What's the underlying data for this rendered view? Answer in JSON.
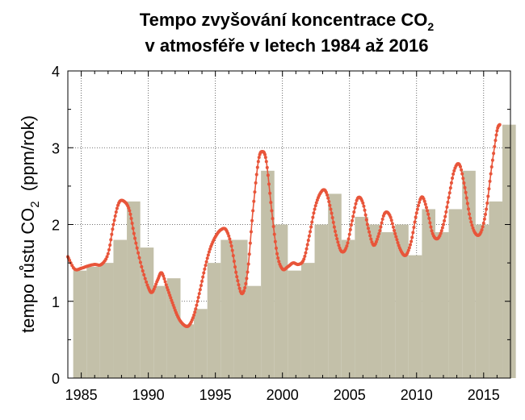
{
  "chart_data": {
    "type": "bar",
    "title": {
      "line1": {
        "text": "Tempo zvyšování koncentrace CO",
        "sub": "2"
      },
      "line2": "v atmosféře v letech 1984 až 2016"
    },
    "ylabel": {
      "before": "tempo růstu CO",
      "sub": "2",
      "after": "  (ppm/rok)"
    },
    "xlabel": "",
    "xlim": [
      1984,
      2017
    ],
    "ylim": [
      0,
      4
    ],
    "xticks": [
      1985,
      1990,
      1995,
      2000,
      2005,
      2010,
      2015
    ],
    "yticks": [
      0,
      1,
      2,
      3,
      4
    ],
    "grid": true,
    "colors": {
      "bars": "#c3c0a9",
      "line": "#e8553a"
    },
    "bars": {
      "years": [
        1984,
        1985,
        1986,
        1987,
        1988,
        1989,
        1990,
        1991,
        1992,
        1993,
        1994,
        1995,
        1996,
        1997,
        1998,
        1999,
        2000,
        2001,
        2002,
        2003,
        2004,
        2005,
        2006,
        2007,
        2008,
        2009,
        2010,
        2011,
        2012,
        2013,
        2014,
        2015,
        2016
      ],
      "values": [
        1.4,
        1.45,
        1.5,
        1.8,
        2.3,
        1.7,
        1.2,
        1.3,
        0.7,
        0.9,
        1.5,
        1.8,
        1.8,
        1.2,
        2.7,
        2.0,
        1.4,
        1.5,
        2.0,
        2.4,
        1.8,
        2.1,
        2.0,
        1.9,
        2.0,
        1.6,
        2.2,
        1.9,
        2.2,
        2.7,
        2.0,
        2.3,
        3.3
      ]
    },
    "series": [
      {
        "type": "line",
        "x": [
          1984.0,
          1984.5,
          1985.0,
          1985.5,
          1986.0,
          1986.5,
          1987.0,
          1987.4,
          1987.8,
          1988.2,
          1988.6,
          1989.0,
          1989.5,
          1990.0,
          1990.3,
          1990.7,
          1991.0,
          1991.4,
          1991.8,
          1992.2,
          1992.6,
          1993.0,
          1993.4,
          1993.8,
          1994.2,
          1994.6,
          1995.0,
          1995.4,
          1995.8,
          1996.2,
          1996.6,
          1997.0,
          1997.4,
          1997.8,
          1998.2,
          1998.5,
          1998.8,
          1999.2,
          1999.6,
          2000.0,
          2000.4,
          2000.8,
          2001.2,
          2001.6,
          2002.0,
          2002.4,
          2002.8,
          2003.2,
          2003.6,
          2004.0,
          2004.4,
          2004.8,
          2005.2,
          2005.6,
          2006.0,
          2006.4,
          2006.8,
          2007.2,
          2007.6,
          2008.0,
          2008.4,
          2008.8,
          2009.2,
          2009.6,
          2010.0,
          2010.4,
          2010.8,
          2011.2,
          2011.6,
          2012.0,
          2012.4,
          2012.8,
          2013.2,
          2013.6,
          2014.0,
          2014.4,
          2014.8,
          2015.2,
          2015.6,
          2016.0,
          2016.2
        ],
        "y": [
          1.58,
          1.42,
          1.43,
          1.46,
          1.48,
          1.48,
          1.62,
          2.0,
          2.28,
          2.3,
          2.18,
          1.82,
          1.45,
          1.18,
          1.12,
          1.28,
          1.37,
          1.18,
          0.98,
          0.8,
          0.7,
          0.68,
          0.82,
          1.1,
          1.42,
          1.68,
          1.84,
          1.93,
          1.93,
          1.72,
          1.32,
          1.1,
          1.38,
          2.18,
          2.82,
          2.95,
          2.82,
          2.18,
          1.62,
          1.42,
          1.45,
          1.5,
          1.48,
          1.55,
          1.85,
          2.2,
          2.4,
          2.44,
          2.2,
          1.86,
          1.65,
          1.72,
          2.05,
          2.34,
          2.28,
          1.95,
          1.73,
          1.88,
          2.14,
          2.12,
          1.88,
          1.67,
          1.6,
          1.78,
          2.15,
          2.36,
          2.18,
          1.88,
          1.82,
          2.0,
          2.35,
          2.7,
          2.78,
          2.48,
          2.08,
          1.88,
          1.9,
          2.2,
          2.75,
          3.22,
          3.3
        ]
      }
    ]
  }
}
